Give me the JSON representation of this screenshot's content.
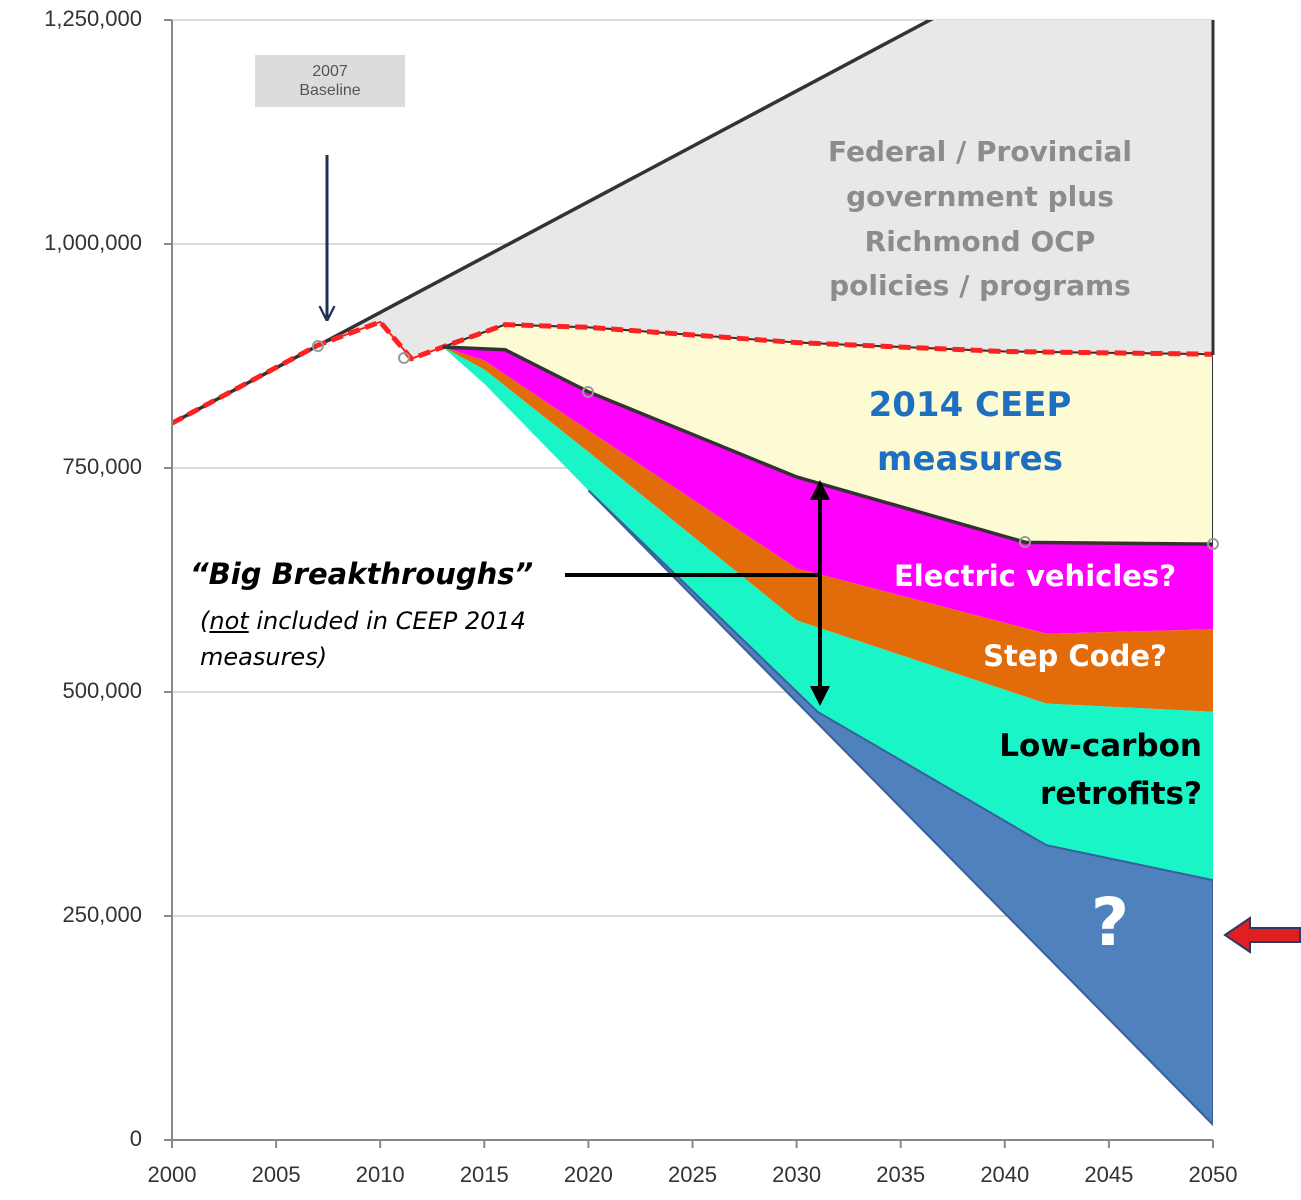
{
  "chart_data": {
    "type": "area",
    "xlim": [
      2000,
      2050
    ],
    "ylim": [
      0,
      1250000
    ],
    "xticks": [
      2000,
      2005,
      2010,
      2015,
      2020,
      2025,
      2030,
      2035,
      2040,
      2045,
      2050
    ],
    "yticks": [
      0,
      {
        "value": 250000,
        "label": "250,000"
      },
      {
        "value": 500000,
        "label": "500,000"
      },
      {
        "value": 750000,
        "label": "750,000"
      },
      {
        "value": 1000000,
        "label": "1,000,000"
      },
      {
        "value": 1250000,
        "label": "1,250,000"
      }
    ],
    "grid": true,
    "series": [
      {
        "line_color": "#333333",
        "line_style": "solid",
        "x": [
          2000,
          2050
        ],
        "values": [
          800000,
          1418000
        ]
      },
      {
        "name": "Federal / Provincial government plus Richmond OCP policies / programs",
        "color": "#e8e8e8",
        "line_color": "#ff2020",
        "line_style": "dashed",
        "x": [
          2000,
          2007,
          2010,
          2011.5,
          2013,
          2016,
          2020,
          2030,
          2040,
          2050
        ],
        "values": [
          800000,
          887000,
          913000,
          872000,
          885000,
          910000,
          907000,
          890000,
          880000,
          877000
        ]
      },
      {
        "name": "2014 CEEP measures",
        "color": "#fdfbd3",
        "line_color": "#333333",
        "line_style": "solid",
        "x": [
          2013,
          2016,
          2020,
          2030,
          2041,
          2050
        ],
        "values": [
          885000,
          882000,
          835000,
          740000,
          667000,
          665000
        ]
      },
      {
        "name": "Electric vehicles?",
        "color": "#ff00ff",
        "x": [
          2013,
          2015,
          2020,
          2030,
          2042,
          2050
        ],
        "values": [
          885000,
          870000,
          792000,
          638000,
          565000,
          570000
        ]
      },
      {
        "name": "Step Code?",
        "color": "#e36c0a",
        "x": [
          2013,
          2015,
          2020,
          2030,
          2042,
          2050
        ],
        "values": [
          885000,
          860000,
          768000,
          580000,
          487000,
          478000
        ]
      },
      {
        "name": "Low-carbon retrofits?",
        "color": "#1af5c8",
        "x": [
          2013,
          2015,
          2020,
          2031,
          2042,
          2050
        ],
        "values": [
          885000,
          844000,
          725000,
          478000,
          329000,
          290000
        ]
      },
      {
        "name": "?",
        "color": "#4f81bd",
        "line_color": "#3a5f9a",
        "line_style": "solid",
        "x": [
          2020,
          2050
        ],
        "values": [
          725000,
          17000
        ]
      }
    ],
    "baseline_label": "2007 Baseline",
    "breakthroughs": {
      "label": "“Big Breakthroughs”",
      "note": [
        "(",
        "not",
        " included in CEEP 2014 measures)"
      ]
    }
  }
}
